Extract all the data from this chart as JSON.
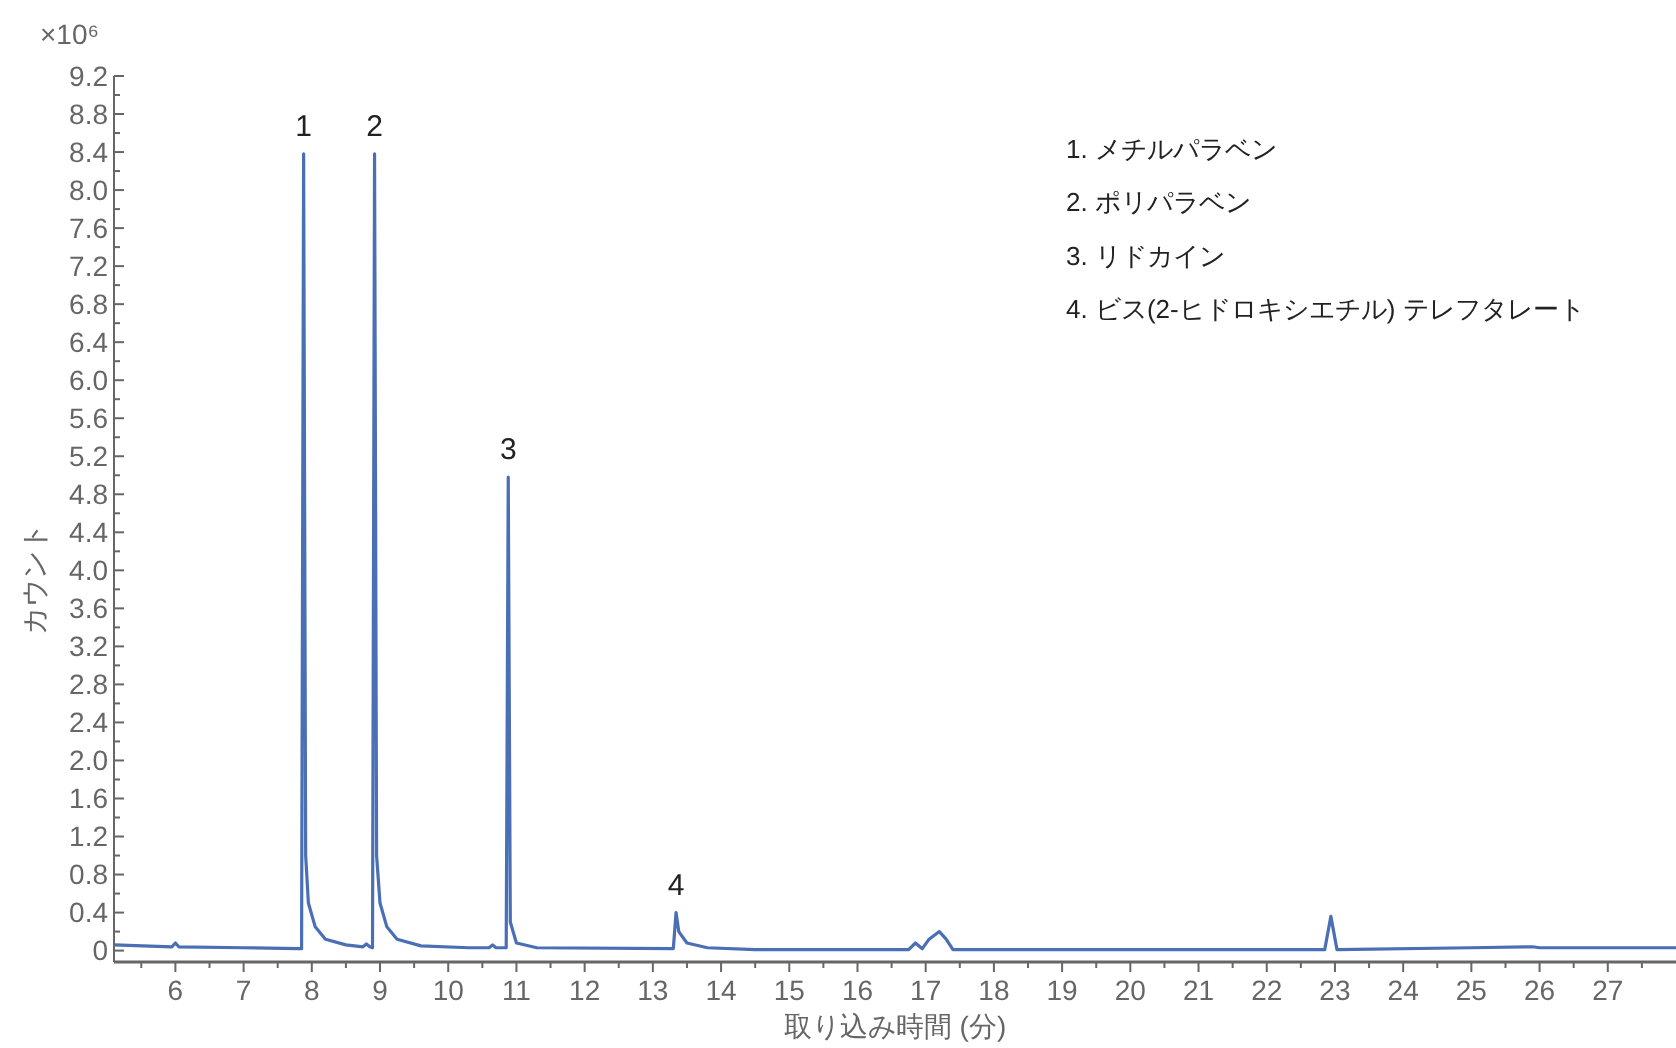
{
  "chart_data": {
    "type": "line",
    "ylabel": "カウント",
    "xlabel": "取り込み時間 (分)",
    "annotations": [
      "×10⁶",
      "1. メチルパラベン",
      "2. ポリパラベン",
      "3. リドカイン",
      "4. ビス(2-ヒドロキシエチル) テレフタレート",
      {
        "text": "1",
        "x": 7.88,
        "y": 8.38
      },
      {
        "text": "2",
        "x": 8.92,
        "y": 8.38
      },
      {
        "text": "3",
        "x": 10.88,
        "y": 4.98
      },
      {
        "text": "4",
        "x": 13.34,
        "y": 0.4
      }
    ],
    "series": [
      {
        "color": "#4a6fb5",
        "x": [
          5.1,
          5.95,
          6.0,
          6.05,
          7.0,
          7.8,
          7.85,
          7.88,
          7.91,
          7.95,
          8.05,
          8.2,
          8.5,
          8.75,
          8.8,
          8.85,
          8.89,
          8.92,
          8.95,
          9.0,
          9.1,
          9.25,
          9.6,
          10.3,
          10.6,
          10.65,
          10.7,
          10.85,
          10.88,
          10.91,
          11.0,
          11.3,
          13.3,
          13.34,
          13.38,
          13.5,
          13.8,
          14.5,
          16.75,
          16.85,
          16.95,
          17.05,
          17.2,
          17.3,
          17.4,
          22.85,
          22.94,
          23.03,
          25.0,
          25.9,
          26.0,
          28.0
        ],
        "values": [
          0.06,
          0.04,
          0.08,
          0.04,
          0.03,
          0.02,
          0.02,
          8.38,
          1.0,
          0.5,
          0.25,
          0.12,
          0.06,
          0.04,
          0.07,
          0.04,
          0.03,
          8.38,
          1.0,
          0.5,
          0.25,
          0.12,
          0.05,
          0.03,
          0.03,
          0.06,
          0.03,
          0.03,
          4.98,
          0.3,
          0.08,
          0.03,
          0.02,
          0.4,
          0.2,
          0.08,
          0.03,
          0.01,
          0.01,
          0.08,
          0.02,
          0.12,
          0.2,
          0.12,
          0.01,
          0.01,
          0.36,
          0.01,
          0.03,
          0.04,
          0.03,
          0.03
        ]
      }
    ],
    "xlim": [
      5.1,
      28
    ],
    "ylim": [
      -0.12,
      9.2
    ],
    "xticks": [
      {
        "value": 5.5,
        "label": null
      },
      6,
      {
        "value": 6.5,
        "label": null
      },
      7,
      {
        "value": 7.5,
        "label": null
      },
      8,
      {
        "value": 8.5,
        "label": null
      },
      9,
      {
        "value": 9.5,
        "label": null
      },
      10,
      {
        "value": 10.5,
        "label": null
      },
      11,
      {
        "value": 11.5,
        "label": null
      },
      12,
      {
        "value": 12.5,
        "label": null
      },
      13,
      {
        "value": 13.5,
        "label": null
      },
      14,
      {
        "value": 14.5,
        "label": null
      },
      15,
      {
        "value": 15.5,
        "label": null
      },
      16,
      {
        "value": 16.5,
        "label": null
      },
      17,
      {
        "value": 17.5,
        "label": null
      },
      18,
      {
        "value": 18.5,
        "label": null
      },
      19,
      {
        "value": 19.5,
        "label": null
      },
      20,
      {
        "value": 20.5,
        "label": null
      },
      21,
      {
        "value": 21.5,
        "label": null
      },
      22,
      {
        "value": 22.5,
        "label": null
      },
      23,
      {
        "value": 23.5,
        "label": null
      },
      24,
      {
        "value": 24.5,
        "label": null
      },
      25,
      {
        "value": 25.5,
        "label": null
      },
      26,
      {
        "value": 26.5,
        "label": null
      },
      27,
      {
        "value": 27.5,
        "label": null
      }
    ],
    "yticks": [
      0,
      {
        "value": 0.2,
        "label": null
      },
      0.4,
      {
        "value": 0.6,
        "label": null
      },
      0.8,
      {
        "value": 1.0,
        "label": null
      },
      1.2,
      {
        "value": 1.4,
        "label": null
      },
      1.6,
      {
        "value": 1.8,
        "label": null
      },
      {
        "value": 2,
        "label": "2.0"
      },
      {
        "value": 2.2,
        "label": null
      },
      2.4,
      {
        "value": 2.6,
        "label": null
      },
      2.8,
      {
        "value": 3.0,
        "label": null
      },
      3.2,
      {
        "value": 3.4,
        "label": null
      },
      3.6,
      {
        "value": 3.8,
        "label": null
      },
      {
        "value": 4,
        "label": "4.0"
      },
      {
        "value": 4.2,
        "label": null
      },
      4.4,
      {
        "value": 4.6,
        "label": null
      },
      4.8,
      {
        "value": 5.0,
        "label": null
      },
      5.2,
      {
        "value": 5.4,
        "label": null
      },
      5.6,
      {
        "value": 5.8,
        "label": null
      },
      {
        "value": 6,
        "label": "6.0"
      },
      {
        "value": 6.2,
        "label": null
      },
      6.4,
      {
        "value": 6.6,
        "label": null
      },
      6.8,
      {
        "value": 7.0,
        "label": null
      },
      7.2,
      {
        "value": 7.4,
        "label": null
      },
      7.6,
      {
        "value": 7.8,
        "label": null
      },
      {
        "value": 8,
        "label": "8.0"
      },
      {
        "value": 8.2,
        "label": null
      },
      8.4,
      {
        "value": 8.6,
        "label": null
      },
      8.8,
      {
        "value": 9.0,
        "label": null
      },
      9.2
    ],
    "grid": false,
    "marker": "none",
    "line_style": "solid"
  }
}
